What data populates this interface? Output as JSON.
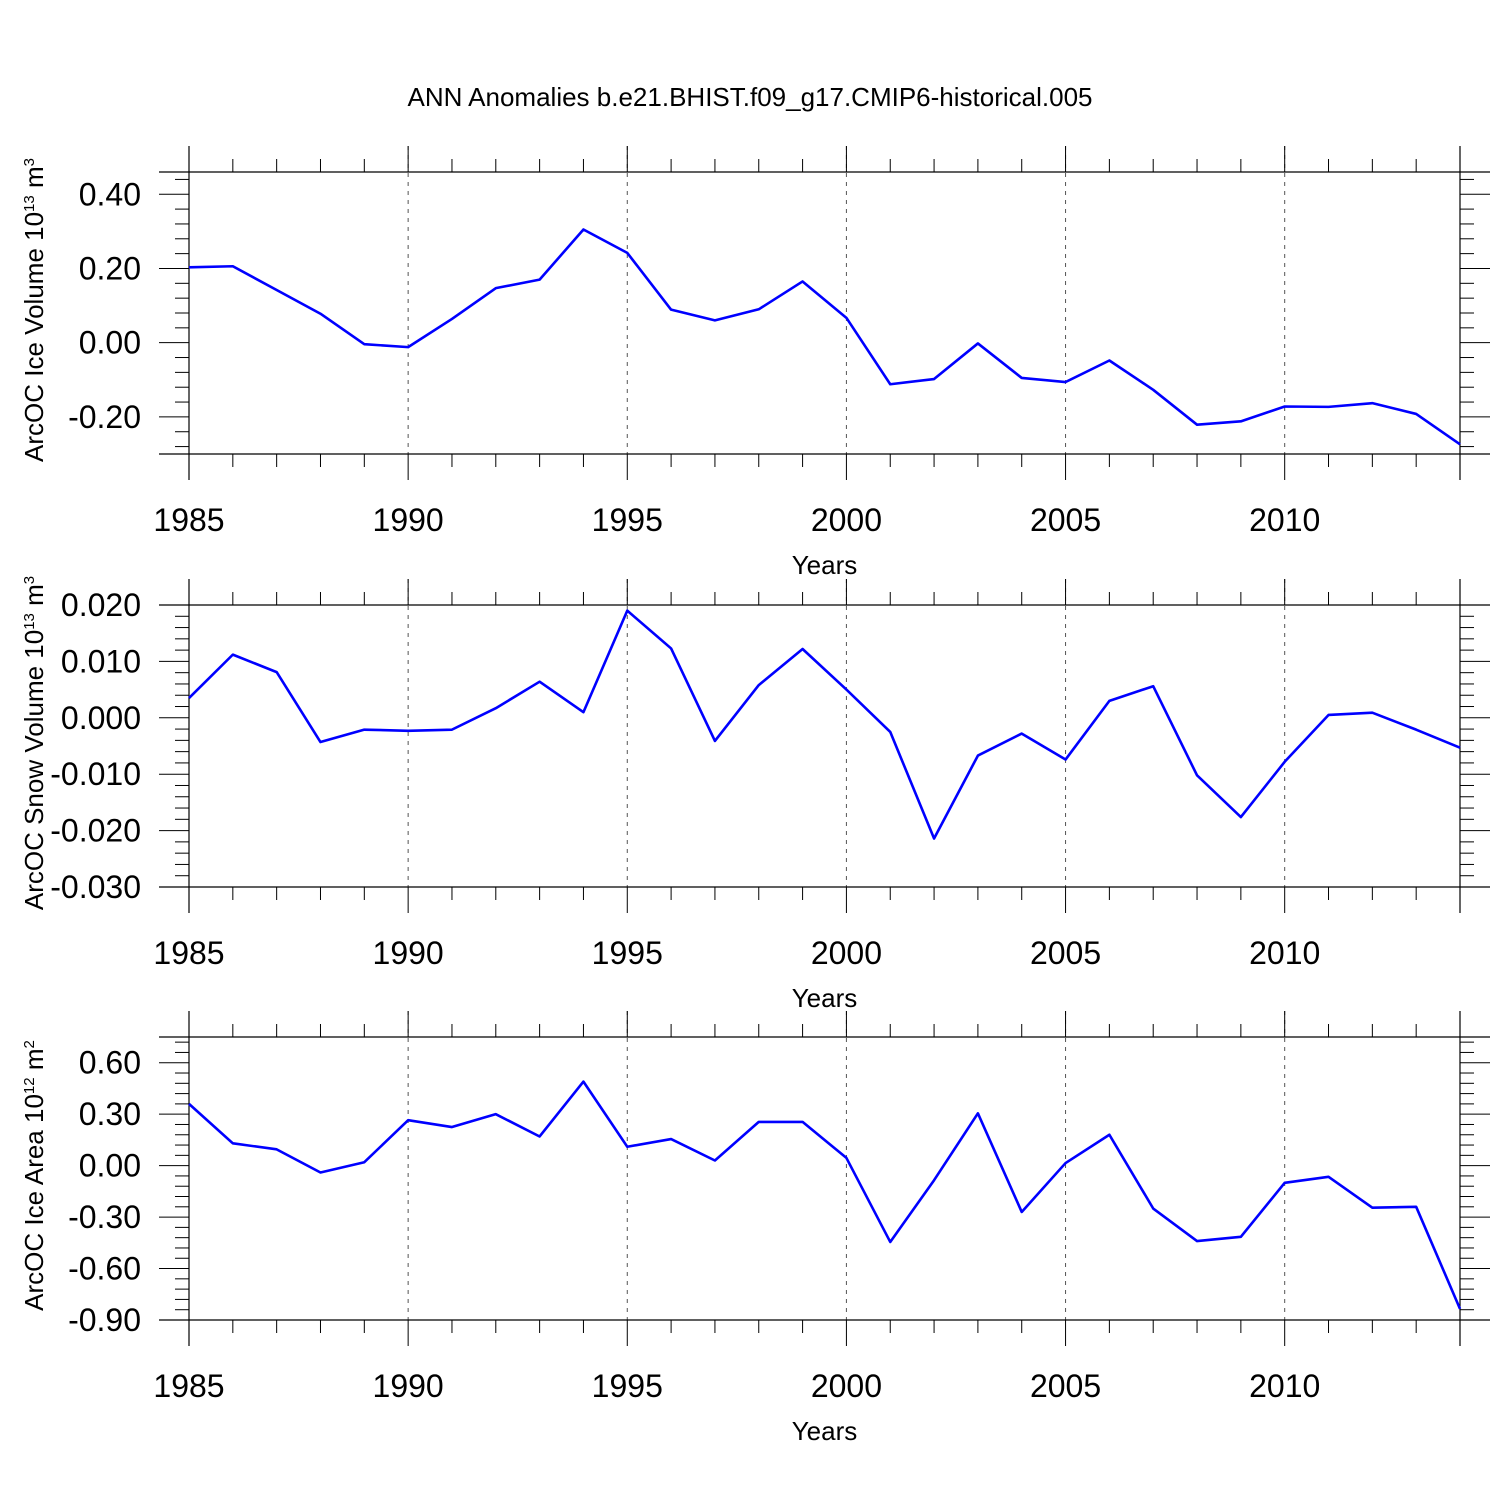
{
  "title": "ANN Anomalies b.e21.BHIST.f09_g17.CMIP6-historical.005",
  "colors": {
    "line": "#0000ff",
    "axes": "#000000",
    "grid": "#555555"
  },
  "chart_data": [
    {
      "type": "line",
      "title": "ANN Anomalies b.e21.BHIST.f09_g17.CMIP6-historical.005",
      "xlabel": "Years",
      "ylabel": {
        "base": "ArcOC Ice Volume 10",
        "exp": "13",
        "unit": " m",
        "unit_exp": "3"
      },
      "xlim": [
        1985,
        2014
      ],
      "ylim": [
        -0.3,
        0.46
      ],
      "xticks": [
        "1985",
        "1990",
        "1995",
        "2000",
        "2005",
        "2010"
      ],
      "yticks": [
        "0.40",
        "0.20",
        "0.00",
        "-0.20"
      ],
      "ytick_values": [
        0.4,
        0.2,
        0.0,
        -0.2
      ],
      "x": [
        1985,
        1986,
        1987,
        1988,
        1989,
        1990,
        1991,
        1992,
        1993,
        1994,
        1995,
        1996,
        1997,
        1998,
        1999,
        2000,
        2001,
        2002,
        2003,
        2004,
        2005,
        2006,
        2007,
        2008,
        2009,
        2010,
        2011,
        2012,
        2013,
        2014
      ],
      "series": [
        {
          "name": "ArcOC Ice Volume",
          "values": [
            0.203,
            0.206,
            0.142,
            0.078,
            -0.004,
            -0.012,
            0.064,
            0.147,
            0.17,
            0.305,
            0.242,
            0.089,
            0.06,
            0.09,
            0.165,
            0.067,
            -0.112,
            -0.098,
            -0.002,
            -0.095,
            -0.106,
            -0.048,
            -0.127,
            -0.221,
            -0.212,
            -0.172,
            -0.173,
            -0.163,
            -0.192,
            -0.274
          ]
        }
      ]
    },
    {
      "type": "line",
      "xlabel": "Years",
      "ylabel": {
        "base": "ArcOC Snow Volume 10",
        "exp": "13",
        "unit": " m",
        "unit_exp": "3"
      },
      "xlim": [
        1985,
        2014
      ],
      "ylim": [
        -0.03,
        0.02
      ],
      "xticks": [
        "1985",
        "1990",
        "1995",
        "2000",
        "2005",
        "2010"
      ],
      "yticks": [
        "0.020",
        "0.010",
        "0.000",
        "-0.010",
        "-0.020",
        "-0.030"
      ],
      "ytick_values": [
        0.02,
        0.01,
        0.0,
        -0.01,
        -0.02,
        -0.03
      ],
      "x": [
        1985,
        1986,
        1987,
        1988,
        1989,
        1990,
        1991,
        1992,
        1993,
        1994,
        1995,
        1996,
        1997,
        1998,
        1999,
        2000,
        2001,
        2002,
        2003,
        2004,
        2005,
        2006,
        2007,
        2008,
        2009,
        2010,
        2011,
        2012,
        2013,
        2014
      ],
      "series": [
        {
          "name": "ArcOC Snow Volume",
          "values": [
            0.0035,
            0.0112,
            0.0081,
            -0.0043,
            -0.0021,
            -0.0023,
            -0.0021,
            0.0017,
            0.0064,
            0.001,
            0.019,
            0.0123,
            -0.0041,
            0.0058,
            0.0122,
            0.005,
            -0.0025,
            -0.0214,
            -0.0067,
            -0.0028,
            -0.0074,
            0.003,
            0.0056,
            -0.0102,
            -0.0176,
            -0.0078,
            0.0005,
            0.0009,
            -0.0021,
            -0.0053
          ]
        }
      ]
    },
    {
      "type": "line",
      "xlabel": "Years",
      "ylabel": {
        "base": "ArcOC Ice Area 10",
        "exp": "12",
        "unit": " m",
        "unit_exp": "2"
      },
      "xlim": [
        1985,
        2014
      ],
      "ylim": [
        -0.9,
        0.75
      ],
      "xticks": [
        "1985",
        "1990",
        "1995",
        "2000",
        "2005",
        "2010"
      ],
      "yticks": [
        "0.60",
        "0.30",
        "0.00",
        "-0.30",
        "-0.60",
        "-0.90"
      ],
      "ytick_values": [
        0.6,
        0.3,
        0.0,
        -0.3,
        -0.6,
        -0.9
      ],
      "x": [
        1985,
        1986,
        1987,
        1988,
        1989,
        1990,
        1991,
        1992,
        1993,
        1994,
        1995,
        1996,
        1997,
        1998,
        1999,
        2000,
        2001,
        2002,
        2003,
        2004,
        2005,
        2006,
        2007,
        2008,
        2009,
        2010,
        2011,
        2012,
        2013,
        2014
      ],
      "series": [
        {
          "name": "ArcOC Ice Area",
          "values": [
            0.36,
            0.13,
            0.095,
            -0.04,
            0.02,
            0.265,
            0.225,
            0.3,
            0.17,
            0.49,
            0.11,
            0.155,
            0.03,
            0.255,
            0.255,
            0.045,
            -0.445,
            -0.085,
            0.305,
            -0.27,
            0.015,
            0.18,
            -0.25,
            -0.44,
            -0.415,
            -0.1,
            -0.065,
            -0.245,
            -0.24,
            -0.835
          ]
        }
      ]
    }
  ]
}
